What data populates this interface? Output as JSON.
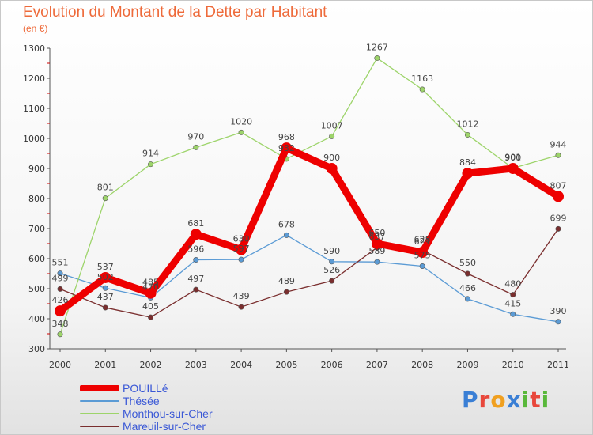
{
  "header": {
    "title": "Evolution du Montant de la Dette par Habitant",
    "subtitle": "(en €)"
  },
  "logo": {
    "text": "Proxiti",
    "colors": [
      "#3a7fd5",
      "#e8473b",
      "#f0a020",
      "#3a7fd5",
      "#59b83b",
      "#e8473b",
      "#59b83b"
    ]
  },
  "chart_data": {
    "type": "line",
    "x": [
      "2000",
      "2001",
      "2002",
      "2003",
      "2004",
      "2005",
      "2006",
      "2007",
      "2008",
      "2009",
      "2010",
      "2011"
    ],
    "ylim": [
      300,
      1300
    ],
    "yticks": [
      300,
      400,
      500,
      600,
      700,
      800,
      900,
      1000,
      1100,
      1200,
      1300
    ],
    "grid": false,
    "legend_position": "bottom-left",
    "series": [
      {
        "name": "Thésée",
        "color": "#5b9bd5",
        "width": 1.3,
        "values": [
          551,
          502,
          470,
          596,
          597,
          678,
          590,
          589,
          575,
          466,
          415,
          390
        ],
        "labels": [
          "551",
          "502",
          "470",
          "596",
          "597",
          "678",
          "590",
          "589",
          "575",
          "466",
          "415",
          "390"
        ]
      },
      {
        "name": "Monthou-sur-Cher",
        "color": "#9dd46a",
        "width": 1.3,
        "values": [
          348,
          801,
          914,
          970,
          1020,
          932,
          1007,
          1267,
          1163,
          1012,
          901,
          944
        ],
        "labels": [
          "348",
          "801",
          "914",
          "970",
          "1020",
          "932",
          "1007",
          "1267",
          "1163",
          "1012",
          "901",
          "944"
        ]
      },
      {
        "name": "Mareuil-sur-Cher",
        "color": "#7a2e2e",
        "width": 1.3,
        "values": [
          499,
          437,
          405,
          497,
          439,
          489,
          526,
          637,
          628,
          550,
          480,
          699
        ],
        "labels": [
          "499",
          "437",
          "405",
          "497",
          "439",
          "489",
          "526",
          "637",
          "628",
          "550",
          "480",
          "699"
        ]
      },
      {
        "name": "POUILLé",
        "color": "#ee0000",
        "width": 9,
        "values": [
          426,
          537,
          485,
          681,
          630,
          968,
          900,
          650,
          621,
          884,
          900,
          807
        ],
        "labels": [
          "426",
          "537",
          "485",
          "681",
          "630",
          "968",
          "900",
          "650",
          "621",
          "884",
          "900",
          "807"
        ]
      }
    ],
    "legend_order": [
      "POUILLé",
      "Thésée",
      "Monthou-sur-Cher",
      "Mareuil-sur-Cher"
    ]
  }
}
